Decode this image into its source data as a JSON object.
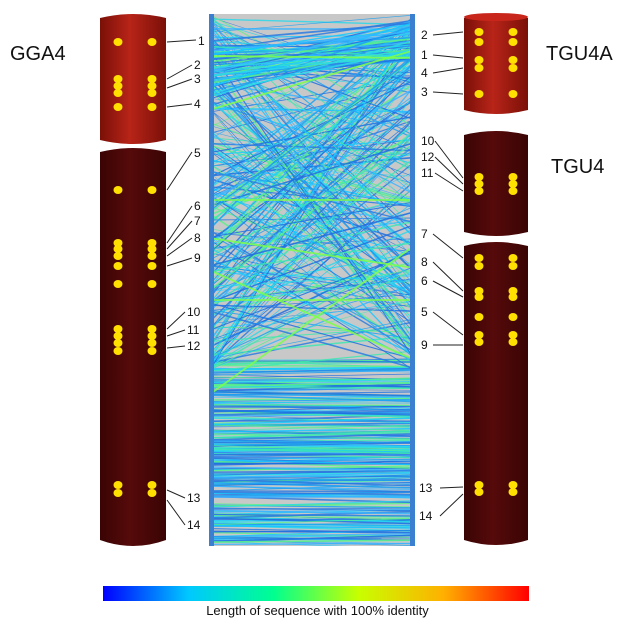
{
  "chromosomes": {
    "gga4": {
      "name": "GGA4",
      "color_short_arm": "#a51a12",
      "color_long_arm": "#4a0606",
      "markers": [
        "1",
        "2",
        "3",
        "4",
        "5",
        "6",
        "7",
        "8",
        "9",
        "10",
        "11",
        "12",
        "13",
        "14"
      ]
    },
    "tgu4a": {
      "name": "TGU4A",
      "color": "#a51a12",
      "markers": [
        "2",
        "1",
        "4",
        "3"
      ]
    },
    "tgu4": {
      "name": "TGU4",
      "color": "#4a0606",
      "markers": [
        "10",
        "12",
        "11",
        "7",
        "8",
        "6",
        "5",
        "9",
        "13",
        "14"
      ]
    }
  },
  "marker_dot_color": "#ffe000",
  "legend": {
    "caption": "Length of sequence with 100% identity",
    "gradient_colors": [
      "#0000ff",
      "#00c8ff",
      "#00ff90",
      "#c8ff00",
      "#ffb000",
      "#ff0000"
    ]
  }
}
